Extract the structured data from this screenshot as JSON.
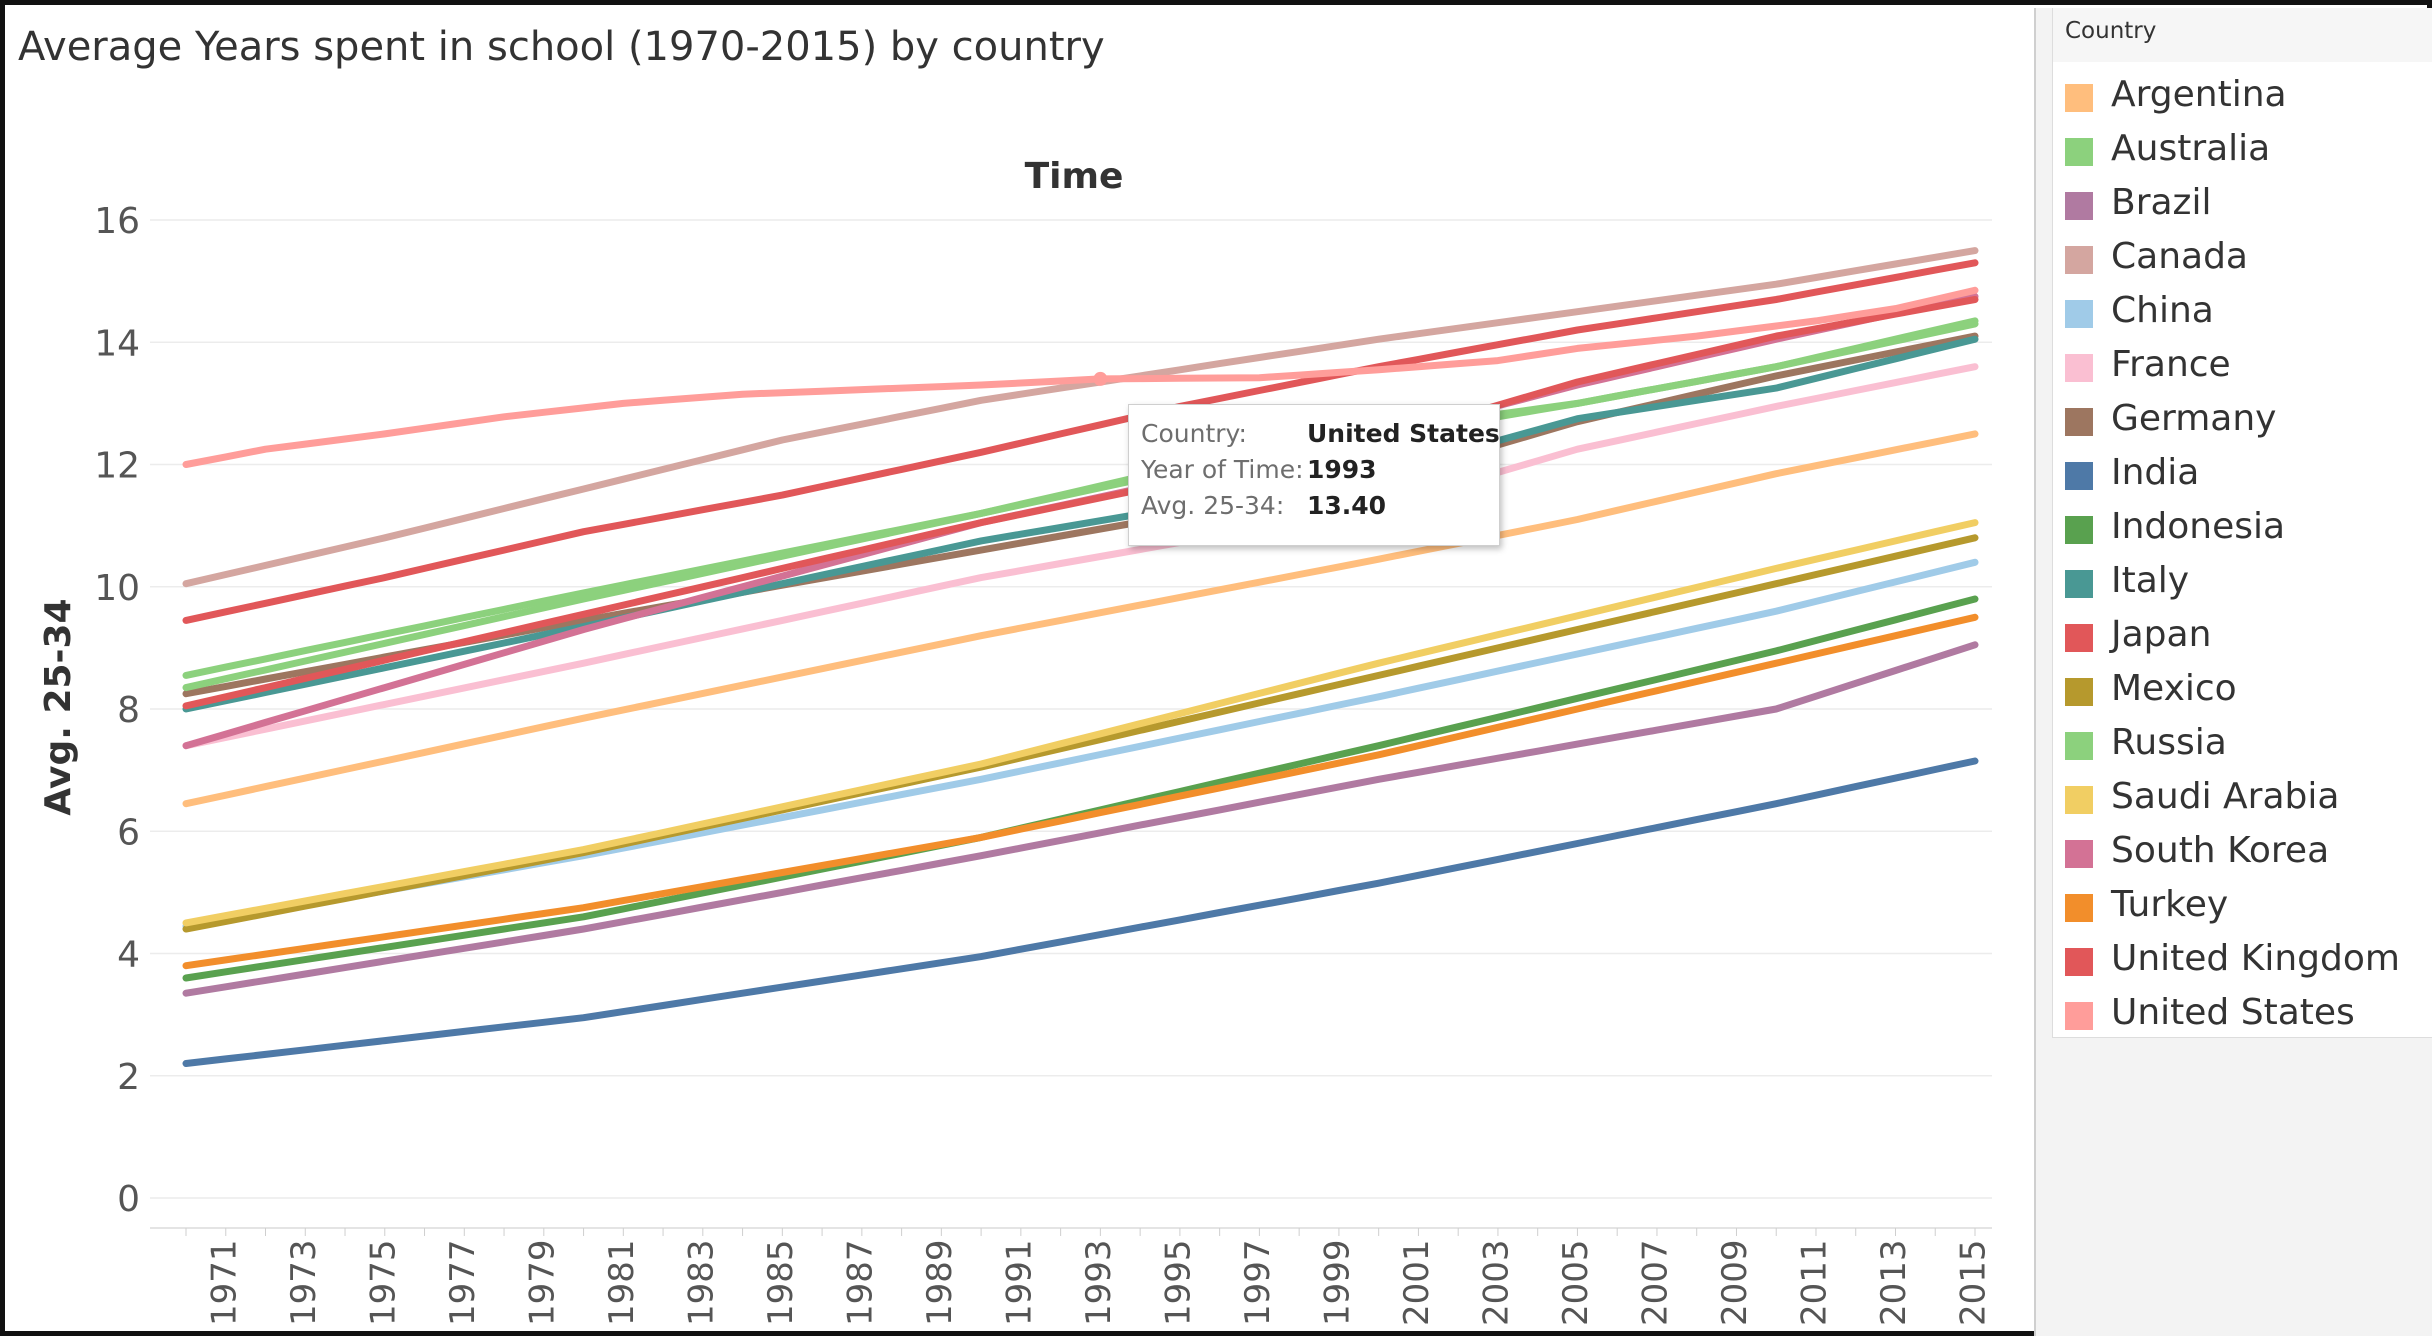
{
  "chart_data": {
    "type": "line",
    "title": "Average Years spent in school (1970-2015) by country",
    "xlabel": "Time",
    "ylabel": "Avg. 25-34",
    "ylim": [
      0,
      16
    ],
    "yticks": [
      0,
      2,
      4,
      6,
      8,
      10,
      12,
      14,
      16
    ],
    "xlim": [
      1970,
      2015
    ],
    "xticks": [
      1971,
      1973,
      1975,
      1977,
      1979,
      1981,
      1983,
      1985,
      1987,
      1989,
      1991,
      1993,
      1995,
      1997,
      1999,
      2001,
      2003,
      2005,
      2007,
      2009,
      2011,
      2013,
      2015
    ],
    "grid": "horizontal",
    "legend_position": "right",
    "legend_title": "Country",
    "series": [
      {
        "name": "Argentina",
        "color": "#ffbe7d",
        "points": [
          [
            1970,
            6.45
          ],
          [
            1980,
            7.85
          ],
          [
            1990,
            9.2
          ],
          [
            2000,
            10.45
          ],
          [
            2005,
            11.1
          ],
          [
            2010,
            11.85
          ],
          [
            2015,
            12.5
          ]
        ]
      },
      {
        "name": "Australia",
        "color": "#8cd17d",
        "points": [
          [
            1970,
            8.55
          ],
          [
            1980,
            9.9
          ],
          [
            1990,
            11.2
          ],
          [
            1995,
            11.9
          ],
          [
            2000,
            12.45
          ],
          [
            2005,
            13.0
          ],
          [
            2010,
            13.6
          ],
          [
            2015,
            14.35
          ]
        ]
      },
      {
        "name": "Brazil",
        "color": "#b07aa1",
        "points": [
          [
            1970,
            3.35
          ],
          [
            1980,
            4.4
          ],
          [
            1990,
            5.6
          ],
          [
            2000,
            6.85
          ],
          [
            2010,
            8.0
          ],
          [
            2015,
            9.05
          ]
        ]
      },
      {
        "name": "Canada",
        "color": "#d4a6a0",
        "points": [
          [
            1970,
            10.05
          ],
          [
            1975,
            10.8
          ],
          [
            1980,
            11.6
          ],
          [
            1985,
            12.4
          ],
          [
            1990,
            13.05
          ],
          [
            1995,
            13.55
          ],
          [
            2000,
            14.05
          ],
          [
            2005,
            14.5
          ],
          [
            2010,
            14.95
          ],
          [
            2015,
            15.5
          ]
        ]
      },
      {
        "name": "China",
        "color": "#a0cbe8",
        "points": [
          [
            1970,
            4.45
          ],
          [
            1980,
            5.6
          ],
          [
            1990,
            6.85
          ],
          [
            2000,
            8.2
          ],
          [
            2010,
            9.6
          ],
          [
            2015,
            10.4
          ]
        ]
      },
      {
        "name": "France",
        "color": "#fabfd2",
        "points": [
          [
            1970,
            7.4
          ],
          [
            1980,
            8.75
          ],
          [
            1990,
            10.15
          ],
          [
            2000,
            11.3
          ],
          [
            2005,
            12.25
          ],
          [
            2010,
            12.95
          ],
          [
            2015,
            13.6
          ]
        ]
      },
      {
        "name": "Germany",
        "color": "#9d7660",
        "points": [
          [
            1970,
            8.25
          ],
          [
            1980,
            9.45
          ],
          [
            1990,
            10.6
          ],
          [
            2000,
            11.75
          ],
          [
            2005,
            12.7
          ],
          [
            2010,
            13.45
          ],
          [
            2015,
            14.1
          ]
        ]
      },
      {
        "name": "India",
        "color": "#4e79a7",
        "points": [
          [
            1970,
            2.2
          ],
          [
            1980,
            2.95
          ],
          [
            1990,
            3.95
          ],
          [
            2000,
            5.15
          ],
          [
            2010,
            6.45
          ],
          [
            2015,
            7.15
          ]
        ]
      },
      {
        "name": "Indonesia",
        "color": "#59a14f",
        "points": [
          [
            1970,
            3.6
          ],
          [
            1980,
            4.6
          ],
          [
            1990,
            5.9
          ],
          [
            2000,
            7.4
          ],
          [
            2010,
            8.95
          ],
          [
            2015,
            9.8
          ]
        ]
      },
      {
        "name": "Italy",
        "color": "#499894",
        "points": [
          [
            1970,
            8.0
          ],
          [
            1980,
            9.35
          ],
          [
            1990,
            10.75
          ],
          [
            2000,
            11.85
          ],
          [
            2005,
            12.75
          ],
          [
            2010,
            13.25
          ],
          [
            2015,
            14.05
          ]
        ]
      },
      {
        "name": "Japan",
        "color": "#e15759",
        "points": [
          [
            1970,
            9.45
          ],
          [
            1975,
            10.15
          ],
          [
            1980,
            10.9
          ],
          [
            1985,
            11.5
          ],
          [
            1990,
            12.2
          ],
          [
            1995,
            12.95
          ],
          [
            2000,
            13.6
          ],
          [
            2005,
            14.2
          ],
          [
            2010,
            14.7
          ],
          [
            2015,
            15.3
          ]
        ]
      },
      {
        "name": "Mexico",
        "color": "#b6992d",
        "points": [
          [
            1970,
            4.4
          ],
          [
            1980,
            5.65
          ],
          [
            1990,
            7.05
          ],
          [
            2000,
            8.55
          ],
          [
            2010,
            10.05
          ],
          [
            2015,
            10.8
          ]
        ]
      },
      {
        "name": "Russia",
        "color": "#8cd17d",
        "points": [
          [
            1970,
            8.35
          ],
          [
            1980,
            9.8
          ],
          [
            1990,
            11.2
          ],
          [
            1995,
            11.95
          ],
          [
            2000,
            12.55
          ],
          [
            2005,
            13.0
          ],
          [
            2010,
            13.6
          ],
          [
            2015,
            14.3
          ]
        ]
      },
      {
        "name": "Saudi Arabia",
        "color": "#f1ce63",
        "points": [
          [
            1970,
            4.5
          ],
          [
            1980,
            5.7
          ],
          [
            1990,
            7.1
          ],
          [
            2000,
            8.75
          ],
          [
            2010,
            10.3
          ],
          [
            2015,
            11.05
          ]
        ]
      },
      {
        "name": "South Korea",
        "color": "#d37295",
        "points": [
          [
            1970,
            7.4
          ],
          [
            1980,
            9.3
          ],
          [
            1990,
            11.05
          ],
          [
            2000,
            12.45
          ],
          [
            2005,
            13.3
          ],
          [
            2010,
            14.05
          ],
          [
            2015,
            14.75
          ]
        ]
      },
      {
        "name": "Turkey",
        "color": "#f28e2b",
        "points": [
          [
            1970,
            3.8
          ],
          [
            1980,
            4.75
          ],
          [
            1990,
            5.9
          ],
          [
            2000,
            7.25
          ],
          [
            2010,
            8.75
          ],
          [
            2015,
            9.5
          ]
        ]
      },
      {
        "name": "United Kingdom",
        "color": "#e15759",
        "points": [
          [
            1970,
            8.05
          ],
          [
            1980,
            9.55
          ],
          [
            1990,
            11.05
          ],
          [
            2000,
            12.4
          ],
          [
            2005,
            13.35
          ],
          [
            2010,
            14.1
          ],
          [
            2015,
            14.7
          ]
        ]
      },
      {
        "name": "United States",
        "color": "#ff9d9a",
        "points": [
          [
            1970,
            12.0
          ],
          [
            1972,
            12.25
          ],
          [
            1975,
            12.5
          ],
          [
            1978,
            12.78
          ],
          [
            1981,
            13.0
          ],
          [
            1984,
            13.15
          ],
          [
            1986,
            13.2
          ],
          [
            1990,
            13.3
          ],
          [
            1993,
            13.4
          ],
          [
            1997,
            13.42
          ],
          [
            2000,
            13.55
          ],
          [
            2003,
            13.7
          ],
          [
            2005,
            13.9
          ],
          [
            2008,
            14.1
          ],
          [
            2011,
            14.35
          ],
          [
            2013,
            14.55
          ],
          [
            2015,
            14.85
          ]
        ]
      }
    ],
    "highlight": {
      "series": "United States",
      "x": 1993,
      "y": 13.4
    }
  },
  "tooltip": {
    "rows": [
      {
        "key": "Country:",
        "value": "United States"
      },
      {
        "key": "Year of Time:",
        "value": "1993"
      },
      {
        "key": "Avg. 25-34:",
        "value": "13.40"
      }
    ]
  }
}
